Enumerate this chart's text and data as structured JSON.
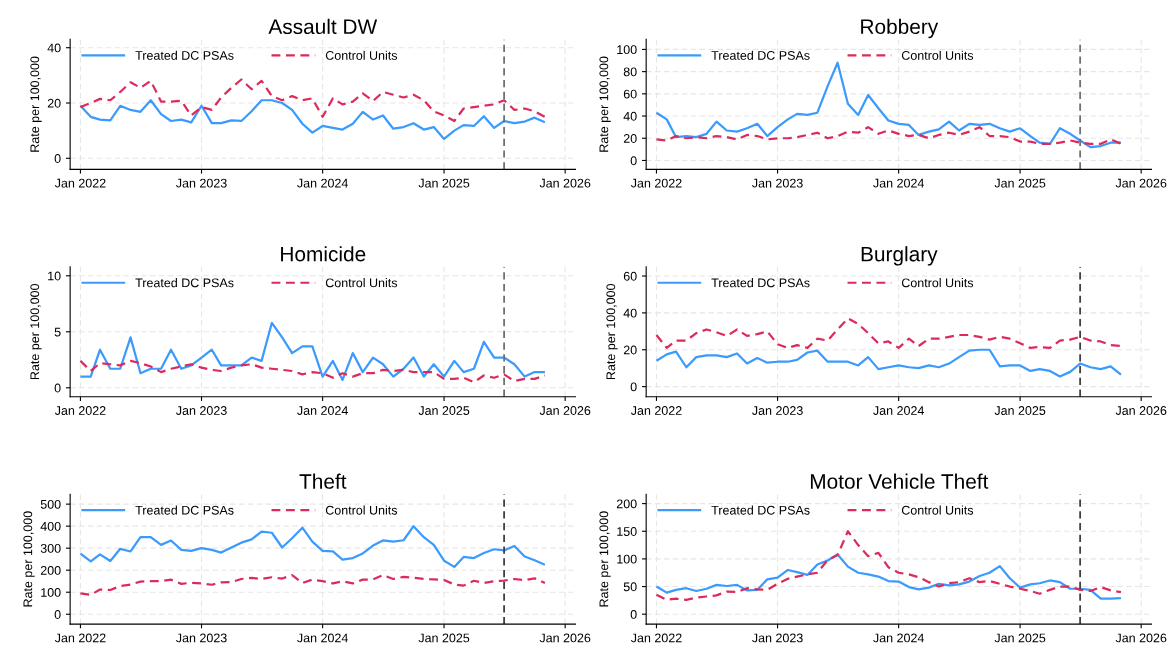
{
  "chart_data": [
    {
      "type": "line",
      "title": "Assault DW",
      "ylabel": "Rate per 100,000",
      "x": [
        "2022-01",
        "2022-02",
        "2022-03",
        "2022-04",
        "2022-05",
        "2022-06",
        "2022-07",
        "2022-08",
        "2022-09",
        "2022-10",
        "2022-11",
        "2022-12",
        "2023-01",
        "2023-02",
        "2023-03",
        "2023-04",
        "2023-05",
        "2023-06",
        "2023-07",
        "2023-08",
        "2023-09",
        "2023-10",
        "2023-11",
        "2023-12",
        "2024-01",
        "2024-02",
        "2024-03",
        "2024-04",
        "2024-05",
        "2024-06",
        "2024-07",
        "2024-08",
        "2024-09",
        "2024-10",
        "2024-11",
        "2024-12",
        "2025-01",
        "2025-02",
        "2025-03",
        "2025-04",
        "2025-05",
        "2025-06",
        "2025-07",
        "2025-08",
        "2025-09",
        "2025-10",
        "2025-11"
      ],
      "xlim": [
        "2021-12",
        "2026-02"
      ],
      "xticks": [
        {
          "value": "2022-01",
          "label": "Jan 2022"
        },
        {
          "value": "2023-01",
          "label": "Jan 2023"
        },
        {
          "value": "2024-01",
          "label": "Jan 2024"
        },
        {
          "value": "2025-01",
          "label": "Jan 2025"
        },
        {
          "value": "2026-01",
          "label": "Jan 2026"
        }
      ],
      "ylim": [
        -4,
        43
      ],
      "yticks": [
        0,
        20,
        40
      ],
      "grid": true,
      "legend": "top left",
      "ref_lines": [
        {
          "axis": "x",
          "value": "2025-07",
          "color": "#707070",
          "line_style": "dashed"
        }
      ],
      "series": [
        {
          "name": "Treated DC PSAs",
          "color": "#3a9afe",
          "line_style": "solid",
          "values": [
            19,
            15,
            14,
            13.7,
            19,
            17.5,
            16.8,
            21,
            16,
            13.5,
            14,
            13,
            19,
            12.7,
            12.7,
            13.7,
            13.5,
            17,
            21,
            21,
            20,
            17.5,
            12.5,
            9.3,
            11.7,
            11,
            10.4,
            12.5,
            16.8,
            14,
            15.5,
            10.7,
            11.3,
            12.7,
            10.4,
            11.3,
            7,
            10,
            12,
            11.7,
            15.2,
            11,
            13.5,
            12.7,
            13.3,
            14.7,
            13
          ]
        },
        {
          "name": "Control Units",
          "color": "#dc2a5b",
          "line_style": "dashed",
          "values": [
            18.5,
            20,
            21.5,
            21,
            24,
            27.5,
            25.5,
            28,
            20.5,
            20.5,
            20.8,
            15.5,
            18.5,
            17.5,
            22,
            25.5,
            28.5,
            25,
            28,
            22.5,
            21,
            22.5,
            21,
            21.7,
            15,
            21.7,
            19.5,
            20.5,
            23.5,
            20.7,
            24,
            23,
            22,
            23,
            21,
            17,
            15.5,
            13.5,
            18,
            18.5,
            19,
            19.5,
            21,
            17.5,
            18,
            17,
            15
          ]
        }
      ]
    },
    {
      "type": "line",
      "title": "Robbery",
      "ylabel": "Rate per 100,000",
      "x": [
        "2022-01",
        "2022-02",
        "2022-03",
        "2022-04",
        "2022-05",
        "2022-06",
        "2022-07",
        "2022-08",
        "2022-09",
        "2022-10",
        "2022-11",
        "2022-12",
        "2023-01",
        "2023-02",
        "2023-03",
        "2023-04",
        "2023-05",
        "2023-06",
        "2023-07",
        "2023-08",
        "2023-09",
        "2023-10",
        "2023-11",
        "2023-12",
        "2024-01",
        "2024-02",
        "2024-03",
        "2024-04",
        "2024-05",
        "2024-06",
        "2024-07",
        "2024-08",
        "2024-09",
        "2024-10",
        "2024-11",
        "2024-12",
        "2025-01",
        "2025-02",
        "2025-03",
        "2025-04",
        "2025-05",
        "2025-06",
        "2025-07",
        "2025-08",
        "2025-09",
        "2025-10",
        "2025-11"
      ],
      "xlim": [
        "2021-12",
        "2026-02"
      ],
      "xticks": [
        {
          "value": "2022-01",
          "label": "Jan 2022"
        },
        {
          "value": "2023-01",
          "label": "Jan 2023"
        },
        {
          "value": "2024-01",
          "label": "Jan 2024"
        },
        {
          "value": "2025-01",
          "label": "Jan 2025"
        },
        {
          "value": "2026-01",
          "label": "Jan 2026"
        }
      ],
      "ylim": [
        -8,
        109
      ],
      "yticks": [
        0,
        20,
        40,
        60,
        80,
        100
      ],
      "grid": true,
      "legend": "top left",
      "ref_lines": [
        {
          "axis": "x",
          "value": "2025-07",
          "color": "#707070",
          "line_style": "dashed"
        }
      ],
      "series": [
        {
          "name": "Treated DC PSAs",
          "color": "#3a9afe",
          "line_style": "solid",
          "values": [
            43,
            37,
            21,
            22,
            21,
            24,
            35,
            27,
            26,
            29,
            33,
            22,
            30,
            37,
            42,
            41,
            43,
            67,
            88,
            51,
            41,
            59,
            47,
            36,
            33,
            32,
            23,
            26,
            28,
            35,
            27,
            33,
            32,
            33,
            29,
            26,
            29,
            22,
            16,
            15,
            29,
            24,
            18,
            12,
            13,
            16,
            16
          ]
        },
        {
          "name": "Control Units",
          "color": "#dc2a5b",
          "line_style": "dashed",
          "values": [
            19,
            18,
            22,
            20,
            21,
            20,
            22,
            21,
            19,
            23,
            22,
            19,
            20,
            20,
            21,
            23,
            25,
            20,
            22,
            26,
            25,
            30,
            24,
            27,
            24,
            22,
            23,
            20,
            23,
            25,
            23,
            26,
            30,
            22,
            22,
            21,
            17,
            17,
            15,
            15,
            16,
            18,
            16,
            15,
            15,
            19,
            15
          ]
        }
      ]
    },
    {
      "type": "line",
      "title": "Homicide",
      "ylabel": "Rate per 100,000",
      "x": [
        "2022-01",
        "2022-02",
        "2022-03",
        "2022-04",
        "2022-05",
        "2022-06",
        "2022-07",
        "2022-08",
        "2022-09",
        "2022-10",
        "2022-11",
        "2022-12",
        "2023-01",
        "2023-02",
        "2023-03",
        "2023-04",
        "2023-05",
        "2023-06",
        "2023-07",
        "2023-08",
        "2023-09",
        "2023-10",
        "2023-11",
        "2023-12",
        "2024-01",
        "2024-02",
        "2024-03",
        "2024-04",
        "2024-05",
        "2024-06",
        "2024-07",
        "2024-08",
        "2024-09",
        "2024-10",
        "2024-11",
        "2024-12",
        "2025-01",
        "2025-02",
        "2025-03",
        "2025-04",
        "2025-05",
        "2025-06",
        "2025-07",
        "2025-08",
        "2025-09",
        "2025-10",
        "2025-11"
      ],
      "xlim": [
        "2021-12",
        "2026-02"
      ],
      "xticks": [
        {
          "value": "2022-01",
          "label": "Jan 2022"
        },
        {
          "value": "2023-01",
          "label": "Jan 2023"
        },
        {
          "value": "2024-01",
          "label": "Jan 2024"
        },
        {
          "value": "2025-01",
          "label": "Jan 2025"
        },
        {
          "value": "2026-01",
          "label": "Jan 2026"
        }
      ],
      "ylim": [
        -0.8,
        10.8
      ],
      "yticks": [
        0,
        5,
        10
      ],
      "grid": true,
      "legend": "top left",
      "ref_lines": [
        {
          "axis": "x",
          "value": "2025-07",
          "color": "#707070",
          "line_style": "dashed"
        }
      ],
      "series": [
        {
          "name": "Treated DC PSAs",
          "color": "#3a9afe",
          "line_style": "solid",
          "values": [
            1.0,
            1.0,
            3.4,
            1.7,
            1.7,
            4.5,
            1.3,
            1.7,
            1.7,
            3.4,
            1.7,
            2.0,
            2.7,
            3.4,
            2.0,
            2.0,
            2.0,
            2.7,
            2.4,
            5.8,
            4.5,
            3.1,
            3.7,
            3.7,
            1.0,
            2.4,
            0.7,
            3.1,
            1.4,
            2.7,
            2.1,
            1.0,
            1.7,
            2.7,
            1.0,
            2.1,
            1.0,
            2.4,
            1.4,
            1.7,
            4.1,
            2.7,
            2.7,
            2.1,
            1.0,
            1.4,
            1.4
          ]
        },
        {
          "name": "Control Units",
          "color": "#dc2a5b",
          "line_style": "dashed",
          "values": [
            2.4,
            1.5,
            2.2,
            2.1,
            2.0,
            2.4,
            2.2,
            1.9,
            1.4,
            1.7,
            1.9,
            2.1,
            1.8,
            1.6,
            1.5,
            1.8,
            2.0,
            2.1,
            1.8,
            1.7,
            1.6,
            1.5,
            1.2,
            1.4,
            1.3,
            0.9,
            1.3,
            1.0,
            1.3,
            1.3,
            1.6,
            1.5,
            1.6,
            1.4,
            1.4,
            1.4,
            0.8,
            0.8,
            0.9,
            0.5,
            1.1,
            0.9,
            1.2,
            0.6,
            0.8,
            0.8,
            1.1
          ]
        }
      ]
    },
    {
      "type": "line",
      "title": "Burglary",
      "ylabel": "Rate per 100,000",
      "x": [
        "2022-01",
        "2022-02",
        "2022-03",
        "2022-04",
        "2022-05",
        "2022-06",
        "2022-07",
        "2022-08",
        "2022-09",
        "2022-10",
        "2022-11",
        "2022-12",
        "2023-01",
        "2023-02",
        "2023-03",
        "2023-04",
        "2023-05",
        "2023-06",
        "2023-07",
        "2023-08",
        "2023-09",
        "2023-10",
        "2023-11",
        "2023-12",
        "2024-01",
        "2024-02",
        "2024-03",
        "2024-04",
        "2024-05",
        "2024-06",
        "2024-07",
        "2024-08",
        "2024-09",
        "2024-10",
        "2024-11",
        "2024-12",
        "2025-01",
        "2025-02",
        "2025-03",
        "2025-04",
        "2025-05",
        "2025-06",
        "2025-07",
        "2025-08",
        "2025-09",
        "2025-10",
        "2025-11"
      ],
      "xlim": [
        "2021-12",
        "2026-02"
      ],
      "xticks": [
        {
          "value": "2022-01",
          "label": "Jan 2022"
        },
        {
          "value": "2023-01",
          "label": "Jan 2023"
        },
        {
          "value": "2024-01",
          "label": "Jan 2024"
        },
        {
          "value": "2025-01",
          "label": "Jan 2025"
        },
        {
          "value": "2026-01",
          "label": "Jan 2026"
        }
      ],
      "ylim": [
        -5.5,
        65
      ],
      "yticks": [
        0,
        20,
        40,
        60
      ],
      "grid": true,
      "legend": "top left",
      "ref_lines": [
        {
          "axis": "x",
          "value": "2025-07",
          "color": "#404040",
          "line_style": "dashed"
        }
      ],
      "series": [
        {
          "name": "Treated DC PSAs",
          "color": "#3a9afe",
          "line_style": "solid",
          "values": [
            14,
            17.5,
            19,
            10.5,
            16,
            17,
            17,
            16,
            18,
            12.5,
            15.5,
            13,
            13.5,
            13.5,
            14.5,
            18.5,
            19.5,
            13.5,
            13.5,
            13.5,
            11.5,
            16,
            9.5,
            10.5,
            11.5,
            10.5,
            10,
            11.5,
            10.5,
            12.5,
            16,
            19.5,
            20,
            20,
            11,
            11.5,
            11.5,
            8.5,
            9.5,
            8.5,
            5.5,
            8,
            12.5,
            10.5,
            9.5,
            11,
            6.5
          ]
        },
        {
          "name": "Control Units",
          "color": "#dc2a5b",
          "line_style": "dashed",
          "values": [
            28,
            21,
            25,
            25,
            29,
            31,
            29.5,
            27.5,
            31,
            27.5,
            28.5,
            30,
            23,
            21,
            22.5,
            21,
            26,
            25,
            31,
            37,
            34,
            29,
            23.5,
            24.5,
            21,
            26,
            22,
            26,
            26,
            27,
            28,
            28,
            27,
            25.5,
            27,
            26,
            23.5,
            21,
            21.5,
            21,
            25,
            25.5,
            27,
            25,
            24.5,
            22.5,
            22
          ]
        }
      ]
    },
    {
      "type": "line",
      "title": "Theft",
      "ylabel": "Rate per 100,000",
      "x": [
        "2022-01",
        "2022-02",
        "2022-03",
        "2022-04",
        "2022-05",
        "2022-06",
        "2022-07",
        "2022-08",
        "2022-09",
        "2022-10",
        "2022-11",
        "2022-12",
        "2023-01",
        "2023-02",
        "2023-03",
        "2023-04",
        "2023-05",
        "2023-06",
        "2023-07",
        "2023-08",
        "2023-09",
        "2023-10",
        "2023-11",
        "2023-12",
        "2024-01",
        "2024-02",
        "2024-03",
        "2024-04",
        "2024-05",
        "2024-06",
        "2024-07",
        "2024-08",
        "2024-09",
        "2024-10",
        "2024-11",
        "2024-12",
        "2025-01",
        "2025-02",
        "2025-03",
        "2025-04",
        "2025-05",
        "2025-06",
        "2025-07",
        "2025-08",
        "2025-09",
        "2025-10",
        "2025-11"
      ],
      "xlim": [
        "2021-12",
        "2026-02"
      ],
      "xticks": [
        {
          "value": "2022-01",
          "label": "Jan 2022"
        },
        {
          "value": "2023-01",
          "label": "Jan 2023"
        },
        {
          "value": "2024-01",
          "label": "Jan 2024"
        },
        {
          "value": "2025-01",
          "label": "Jan 2025"
        },
        {
          "value": "2026-01",
          "label": "Jan 2026"
        }
      ],
      "ylim": [
        -45,
        545
      ],
      "yticks": [
        0,
        100,
        200,
        300,
        400,
        500
      ],
      "grid": true,
      "legend": "top left",
      "ref_lines": [
        {
          "axis": "x",
          "value": "2025-07",
          "color": "#404040",
          "line_style": "dashed"
        }
      ],
      "series": [
        {
          "name": "Treated DC PSAs",
          "color": "#3a9afe",
          "line_style": "solid",
          "values": [
            275,
            240,
            272,
            242,
            297,
            285,
            350,
            350,
            315,
            335,
            292,
            288,
            300,
            292,
            280,
            303,
            325,
            340,
            375,
            370,
            303,
            345,
            393,
            330,
            288,
            285,
            248,
            255,
            276,
            312,
            335,
            330,
            336,
            400,
            350,
            315,
            243,
            215,
            260,
            255,
            278,
            295,
            290,
            310,
            262,
            245,
            225
          ]
        },
        {
          "name": "Control Units",
          "color": "#dc2a5b",
          "line_style": "dashed",
          "values": [
            95,
            88,
            112,
            110,
            128,
            135,
            148,
            150,
            150,
            157,
            138,
            143,
            140,
            134,
            145,
            146,
            160,
            165,
            160,
            168,
            162,
            178,
            142,
            157,
            150,
            140,
            150,
            140,
            157,
            158,
            178,
            160,
            170,
            166,
            160,
            158,
            155,
            135,
            130,
            152,
            142,
            150,
            153,
            160,
            155,
            163,
            142
          ]
        }
      ]
    },
    {
      "type": "line",
      "title": "Motor Vehicle Theft",
      "ylabel": "Rate per 100,000",
      "x": [
        "2022-01",
        "2022-02",
        "2022-03",
        "2022-04",
        "2022-05",
        "2022-06",
        "2022-07",
        "2022-08",
        "2022-09",
        "2022-10",
        "2022-11",
        "2022-12",
        "2023-01",
        "2023-02",
        "2023-03",
        "2023-04",
        "2023-05",
        "2023-06",
        "2023-07",
        "2023-08",
        "2023-09",
        "2023-10",
        "2023-11",
        "2023-12",
        "2024-01",
        "2024-02",
        "2024-03",
        "2024-04",
        "2024-05",
        "2024-06",
        "2024-07",
        "2024-08",
        "2024-09",
        "2024-10",
        "2024-11",
        "2024-12",
        "2025-01",
        "2025-02",
        "2025-03",
        "2025-04",
        "2025-05",
        "2025-06",
        "2025-07",
        "2025-08",
        "2025-09",
        "2025-10",
        "2025-11"
      ],
      "xlim": [
        "2021-12",
        "2026-02"
      ],
      "xticks": [
        {
          "value": "2022-01",
          "label": "Jan 2022"
        },
        {
          "value": "2023-01",
          "label": "Jan 2023"
        },
        {
          "value": "2024-01",
          "label": "Jan 2024"
        },
        {
          "value": "2025-01",
          "label": "Jan 2025"
        },
        {
          "value": "2026-01",
          "label": "Jan 2026"
        }
      ],
      "ylim": [
        -18,
        217
      ],
      "yticks": [
        0,
        50,
        100,
        150,
        200
      ],
      "grid": true,
      "legend": "top left",
      "ref_lines": [
        {
          "axis": "x",
          "value": "2025-07",
          "color": "#404040",
          "line_style": "dashed"
        }
      ],
      "series": [
        {
          "name": "Treated DC PSAs",
          "color": "#3a9afe",
          "line_style": "solid",
          "values": [
            50,
            39,
            44,
            47,
            42,
            46,
            53,
            51,
            53,
            43,
            44,
            63,
            66,
            80,
            76,
            71,
            90,
            97,
            108,
            86,
            75,
            72,
            68,
            60,
            59,
            49,
            45,
            48,
            55,
            52,
            54,
            59,
            69,
            75,
            87,
            65,
            48,
            54,
            56,
            61,
            58,
            46,
            46,
            44,
            28,
            28,
            29
          ]
        },
        {
          "name": "Control Units",
          "color": "#dc2a5b",
          "line_style": "dashed",
          "values": [
            35,
            26,
            28,
            26,
            30,
            32,
            34,
            41,
            40,
            47,
            45,
            44,
            55,
            64,
            68,
            72,
            75,
            98,
            107,
            150,
            125,
            105,
            111,
            85,
            75,
            72,
            67,
            58,
            50,
            56,
            58,
            65,
            58,
            60,
            55,
            50,
            46,
            42,
            37,
            44,
            50,
            50,
            44,
            42,
            49,
            43,
            40
          ]
        }
      ]
    }
  ]
}
